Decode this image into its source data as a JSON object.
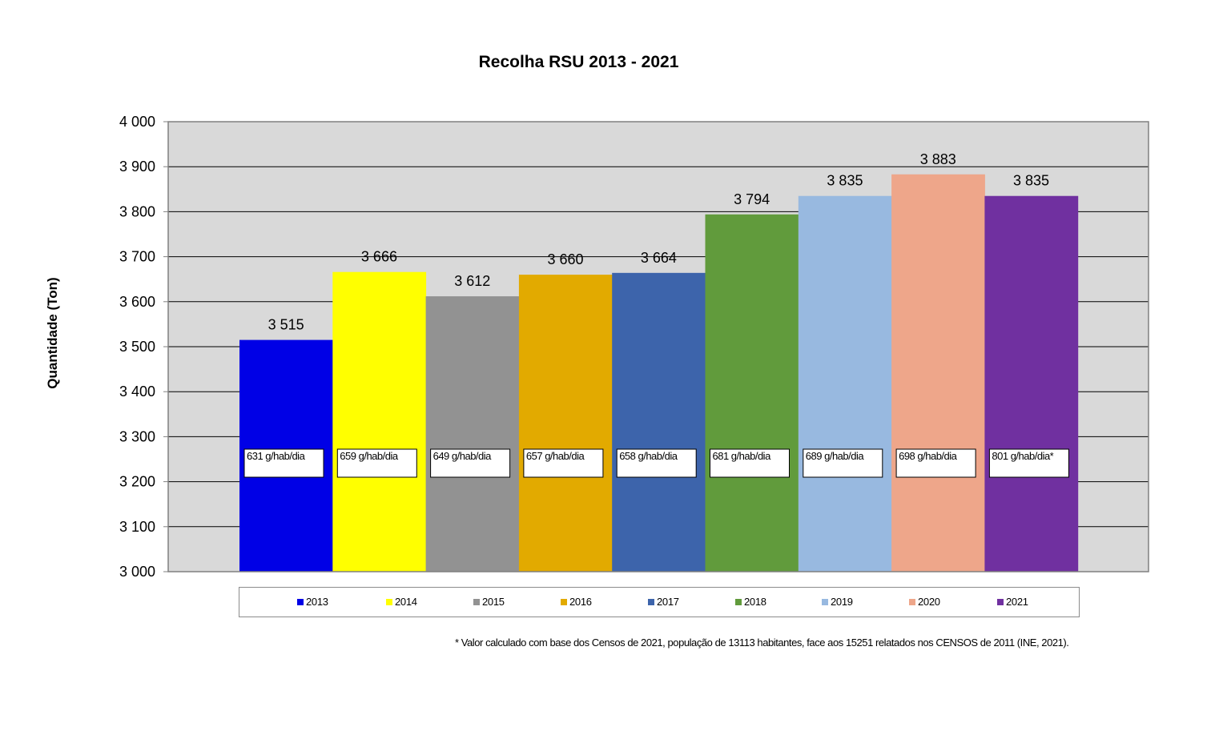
{
  "chart_data": {
    "type": "bar",
    "title": "Recolha RSU 2013 - 2021",
    "ylabel": "Quantidade (Ton)",
    "xlabel": "",
    "ylim": [
      3000,
      4000
    ],
    "yticks": [
      3000,
      3100,
      3200,
      3300,
      3400,
      3500,
      3600,
      3700,
      3800,
      3900,
      4000
    ],
    "ytick_labels": [
      "3 000",
      "3 100",
      "3 200",
      "3 300",
      "3 400",
      "3 500",
      "3 600",
      "3 700",
      "3 800",
      "3 900",
      "4 000"
    ],
    "grid": true,
    "legend_position": "bottom",
    "categories": [
      "2013",
      "2014",
      "2015",
      "2016",
      "2017",
      "2018",
      "2019",
      "2020",
      "2021"
    ],
    "values": [
      3515,
      3666,
      3612,
      3660,
      3664,
      3794,
      3835,
      3883,
      3835
    ],
    "value_labels": [
      "3 515",
      "3 666",
      "3 612",
      "3 660",
      "3 664",
      "3 794",
      "3 835",
      "3 883",
      "3 835"
    ],
    "annotations": [
      "631 g/hab/dia",
      "659 g/hab/dia",
      "649 g/hab/dia",
      "657 g/hab/dia",
      "658 g/hab/dia",
      "681 g/hab/dia",
      "689 g/hab/dia",
      "698 g/hab/dia",
      "801 g/hab/dia*"
    ],
    "colors": [
      "#0000e6",
      "#ffff00",
      "#929292",
      "#e2aa00",
      "#3d64ab",
      "#619b3c",
      "#98b9e0",
      "#eea68a",
      "#7030a0"
    ],
    "plot_background": "#d9d9d9",
    "footnote": "* Valor calculado com base dos Censos de 2021, população de 13113 habitantes, face aos 15251 relatados nos CENSOS de 2011 (INE, 2021)."
  }
}
